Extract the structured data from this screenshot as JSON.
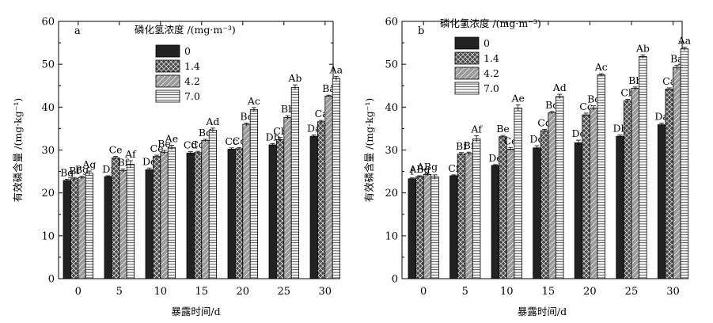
{
  "chart_data": [
    {
      "type": "bar",
      "panel_label": "a",
      "categories": [
        "0",
        "5",
        "10",
        "15",
        "20",
        "25",
        "30"
      ],
      "xlabel": "暴露时间/d",
      "ylabel": "有效磷含量 /(mg·kg⁻¹)",
      "ylim": [
        0,
        60
      ],
      "yticks": [
        "0",
        "10",
        "20",
        "30",
        "40",
        "50",
        "60"
      ],
      "legend_title": "磷化氢浓度 /(mg·m⁻³)",
      "legend_position": "top-left",
      "series": [
        {
          "name": "0",
          "values": [
            22.9,
            23.8,
            25.4,
            29.3,
            30.2,
            31.2,
            33.2
          ],
          "errors": [
            0.3,
            0.2,
            0.4,
            0.3,
            0.3,
            0.3,
            0.3
          ],
          "labels": [
            "Bg",
            "Df",
            "De",
            "Cd",
            "Cc",
            "Db",
            "Da"
          ]
        },
        {
          "name": "1.4",
          "values": [
            23.3,
            28.2,
            28.5,
            29.4,
            30.3,
            32.4,
            36.6
          ],
          "errors": [
            0.3,
            0.3,
            0.3,
            0.3,
            0.3,
            0.5,
            0.3
          ],
          "labels": [
            "Bf",
            "Ce",
            "Ce",
            "Cd",
            "Cc",
            "Cb",
            "Ca"
          ]
        },
        {
          "name": "4.2",
          "values": [
            23.6,
            25.2,
            29.5,
            32.2,
            36.0,
            37.6,
            42.6
          ],
          "errors": [
            0.3,
            0.4,
            0.4,
            0.3,
            0.3,
            0.4,
            0.2
          ],
          "labels": [
            "Bg",
            "Bf",
            "Be",
            "Bd",
            "Bc",
            "Bb",
            "Ba"
          ]
        },
        {
          "name": "7.0",
          "values": [
            24.6,
            26.7,
            30.6,
            34.6,
            39.4,
            44.6,
            46.7
          ],
          "errors": [
            0.5,
            0.8,
            0.5,
            0.5,
            0.5,
            0.6,
            0.5
          ],
          "labels": [
            "Ag",
            "Af",
            "Ae",
            "Ad",
            "Ac",
            "Ab",
            "Aa"
          ]
        }
      ]
    },
    {
      "type": "bar",
      "panel_label": "b",
      "categories": [
        "0",
        "5",
        "10",
        "15",
        "20",
        "25",
        "30"
      ],
      "xlabel": "暴露时间/d",
      "ylabel": "有效磷含量 /(mg·kg⁻¹)",
      "ylim": [
        0,
        60
      ],
      "yticks": [
        "0",
        "10",
        "20",
        "30",
        "40",
        "50",
        "60"
      ],
      "legend_title": "磷化氢浓度 /(mg·m⁻³)",
      "legend_position": "top-left",
      "series": [
        {
          "name": "0",
          "values": [
            23.3,
            24.0,
            26.4,
            30.5,
            31.7,
            33.2,
            35.9
          ],
          "errors": [
            0.2,
            0.2,
            0.2,
            0.5,
            0.6,
            0.3,
            0.4
          ],
          "labels": [
            "f",
            "Cf",
            "De",
            "Dd",
            "Dc",
            "Db",
            "Da"
          ]
        },
        {
          "name": "1.4",
          "values": [
            23.8,
            29.1,
            33.1,
            34.5,
            38.2,
            41.5,
            44.2
          ],
          "errors": [
            0.2,
            0.3,
            0.3,
            0.3,
            0.4,
            0.3,
            0.3
          ],
          "labels": [
            "ABg",
            "Bf",
            "Be",
            "Cd",
            "Cc",
            "Cb",
            "Ca"
          ]
        },
        {
          "name": "4.2",
          "values": [
            24.3,
            29.2,
            30.2,
            38.7,
            39.8,
            44.4,
            49.3
          ],
          "errors": [
            0.3,
            0.3,
            0.4,
            0.3,
            0.5,
            0.3,
            0.5
          ],
          "labels": [
            "ABg",
            "Bf",
            "Ce",
            "Bd",
            "Bc",
            "Bb",
            "Ba"
          ]
        },
        {
          "name": "7.0",
          "values": [
            23.7,
            32.6,
            39.8,
            42.5,
            47.5,
            51.8,
            53.6
          ],
          "errors": [
            0.5,
            0.7,
            0.7,
            0.5,
            0.3,
            0.4,
            0.4
          ],
          "labels": [
            "",
            "Af",
            "Ae",
            "Ad",
            "Ac",
            "Ab",
            "Aa"
          ]
        }
      ]
    }
  ]
}
